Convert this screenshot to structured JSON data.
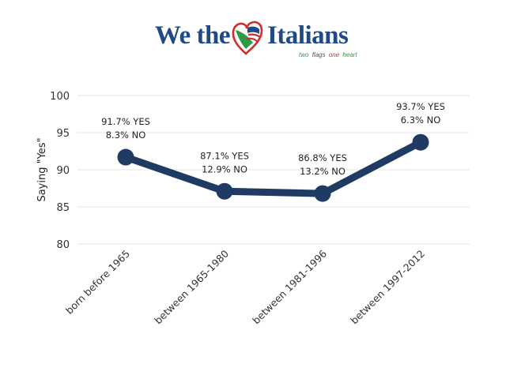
{
  "logo": {
    "word_left": "We the",
    "word_right": "Italians",
    "tagline": [
      "two",
      "flags",
      "one",
      "heart"
    ],
    "tagline_colors": [
      "#2e9a45",
      "#555555",
      "#d22b2b",
      "#2e9a45"
    ],
    "brand_color": "#1f4a86"
  },
  "chart_data": {
    "type": "line",
    "categories": [
      "born before 1965",
      "between 1965-1980",
      "between 1981-1996",
      "between 1997-2012"
    ],
    "series": [
      {
        "values": [
          91.7,
          87.1,
          86.8,
          93.7
        ]
      }
    ],
    "data_labels": [
      [
        "91.7% YES",
        "8.3% NO"
      ],
      [
        "87.1% YES",
        "12.9% NO"
      ],
      [
        "86.8% YES",
        "13.2% NO"
      ],
      [
        "93.7% YES",
        "6.3% NO"
      ]
    ],
    "ylabel": "Saying \"Yes\"",
    "xlabel": "",
    "ylim": [
      80,
      100
    ],
    "yticks": [
      80,
      85,
      90,
      95,
      100
    ],
    "grid": true,
    "color": "#1f3b63",
    "grid_color": "#e6e6e6"
  }
}
